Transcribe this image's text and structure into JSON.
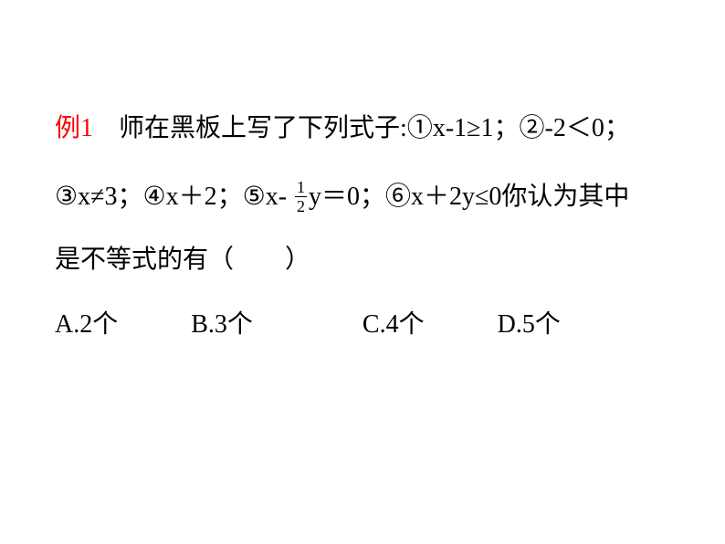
{
  "example_label": "例1",
  "problem": {
    "intro": "师在黑板上写了下列式子:",
    "expr1": "①x-1≥1；",
    "expr2": "②-2＜0；",
    "expr3": "③x≠3；",
    "expr4": "④x＋2；",
    "expr5_pre": "⑤x- ",
    "frac_num": "1",
    "frac_den": "2",
    "expr5_post": "y＝0；",
    "expr6": "⑥x＋2y≤0你认为其中",
    "tail": "是不等式的有（　　）"
  },
  "options": {
    "a": "A.2个",
    "b": "B.3个",
    "c": "C.4个",
    "d": "D.5个"
  },
  "colors": {
    "label": "#ff0000",
    "text": "#000000",
    "background": "#ffffff"
  },
  "fontsize": {
    "body": 28,
    "fraction": 18
  }
}
